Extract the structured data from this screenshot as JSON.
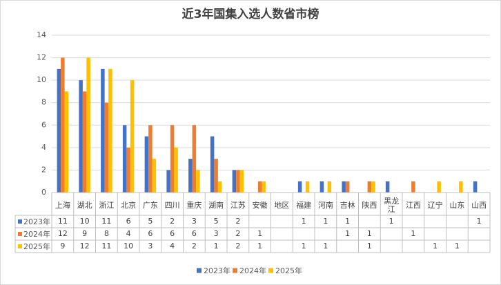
{
  "chart_data": {
    "type": "bar",
    "title": "近3年国集入选人数省市榜",
    "categories": [
      "上海",
      "湖北",
      "浙江",
      "北京",
      "广东",
      "四川",
      "重庆",
      "湖南",
      "江苏",
      "安徽",
      "地区",
      "福建",
      "河南",
      "吉林",
      "陕西",
      "黑龙江",
      "江西",
      "辽宁",
      "山东",
      "山西"
    ],
    "series": [
      {
        "name": "2023年",
        "color": "#4472c4",
        "values": [
          11,
          10,
          11,
          6,
          5,
          2,
          3,
          5,
          2,
          null,
          null,
          1,
          1,
          1,
          null,
          1,
          null,
          null,
          null,
          1
        ]
      },
      {
        "name": "2024年",
        "color": "#ed7d31",
        "values": [
          12,
          9,
          8,
          4,
          6,
          6,
          6,
          3,
          2,
          1,
          null,
          null,
          null,
          1,
          1,
          null,
          1,
          null,
          null,
          null
        ]
      },
      {
        "name": "2025年",
        "color": "#ffc000",
        "values": [
          9,
          12,
          11,
          10,
          3,
          4,
          2,
          1,
          2,
          1,
          null,
          1,
          1,
          null,
          1,
          null,
          null,
          1,
          1,
          null
        ]
      }
    ],
    "ylim": [
      0,
      14
    ],
    "yticks": [
      0,
      2,
      4,
      6,
      8,
      10,
      12,
      14
    ],
    "grid": true
  }
}
